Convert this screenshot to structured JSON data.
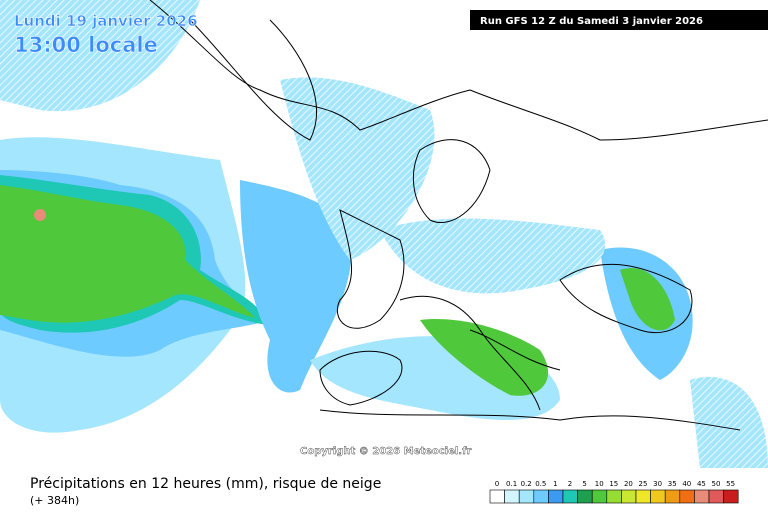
{
  "header": {
    "date": "Lundi 19 janvier 2026",
    "time": "13:00 locale",
    "run": "Run GFS 12 Z du Samedi 3 janvier 2026"
  },
  "copyright": "Copyright © 2026 Meteociel.fr",
  "footer": {
    "title": "Précipitations en 12 heures (mm), risque de neige",
    "lead": "(+ 384h)"
  },
  "legend": {
    "items": [
      {
        "label": 0,
        "color": "#ffffff"
      },
      {
        "label": 0.1,
        "color": "#d2f5ff"
      },
      {
        "label": 0.2,
        "color": "#a5e6ff"
      },
      {
        "label": 0.5,
        "color": "#6ecbff"
      },
      {
        "label": 1,
        "color": "#3c9bf0"
      },
      {
        "label": 2,
        "color": "#1ec8b4"
      },
      {
        "label": 5,
        "color": "#1ea050"
      },
      {
        "label": 10,
        "color": "#50c83c"
      },
      {
        "label": 15,
        "color": "#96dc32"
      },
      {
        "label": 20,
        "color": "#c8e632"
      },
      {
        "label": 25,
        "color": "#f0e628"
      },
      {
        "label": 30,
        "color": "#f0c81e"
      },
      {
        "label": 35,
        "color": "#f09b14"
      },
      {
        "label": 40,
        "color": "#f06e14"
      },
      {
        "label": 45,
        "color": "#e68c78"
      },
      {
        "label": 50,
        "color": "#e15a5a"
      },
      {
        "label": 55,
        "color": "#c81e1e"
      }
    ]
  }
}
